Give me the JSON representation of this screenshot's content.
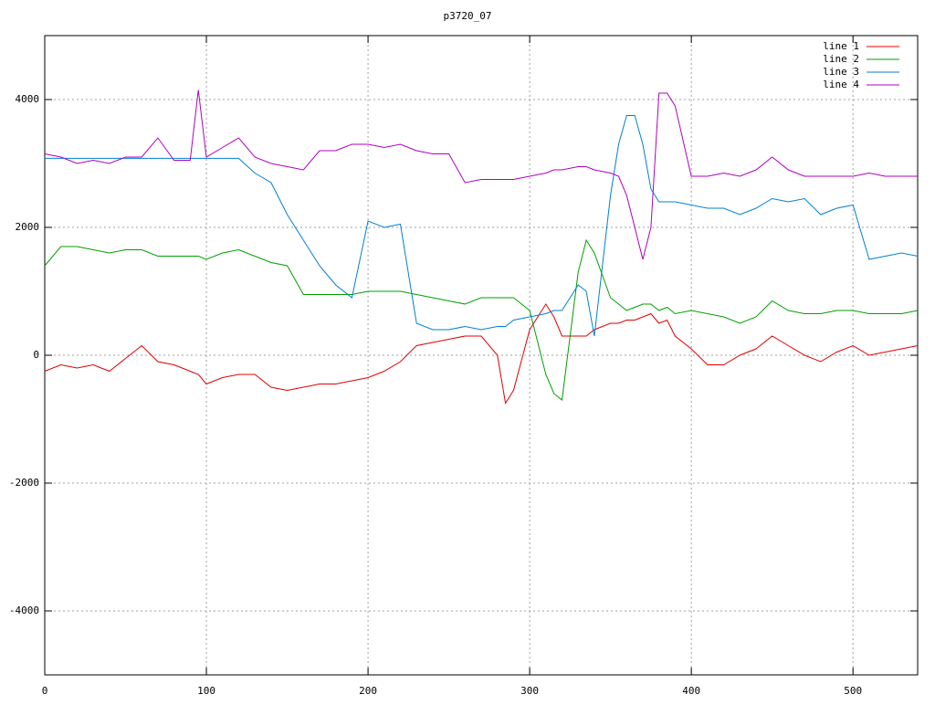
{
  "chart_data": {
    "type": "line",
    "title": "p3720_07",
    "x": [
      0,
      10,
      20,
      30,
      40,
      50,
      60,
      70,
      80,
      90,
      95,
      100,
      110,
      120,
      130,
      140,
      150,
      160,
      170,
      180,
      190,
      200,
      210,
      220,
      230,
      240,
      250,
      260,
      270,
      280,
      285,
      290,
      300,
      310,
      315,
      320,
      330,
      335,
      340,
      350,
      355,
      360,
      365,
      370,
      375,
      380,
      385,
      390,
      400,
      410,
      420,
      430,
      440,
      450,
      460,
      470,
      480,
      490,
      500,
      510,
      520,
      530,
      540
    ],
    "series": [
      {
        "name": "line 1",
        "color": "#e00000",
        "values": [
          -250,
          -150,
          -200,
          -150,
          -250,
          -50,
          150,
          -100,
          -150,
          -250,
          -300,
          -450,
          -350,
          -300,
          -300,
          -500,
          -550,
          -500,
          -450,
          -450,
          -400,
          -350,
          -250,
          -100,
          150,
          200,
          250,
          300,
          300,
          0,
          -750,
          -550,
          400,
          800,
          600,
          300,
          300,
          300,
          400,
          500,
          500,
          550,
          550,
          600,
          650,
          500,
          550,
          300,
          100,
          -150,
          -150,
          0,
          100,
          300,
          150,
          0,
          -100,
          50,
          150,
          0,
          50,
          100,
          150
        ]
      },
      {
        "name": "line 2",
        "color": "#00a000",
        "values": [
          1400,
          1700,
          1700,
          1650,
          1600,
          1650,
          1650,
          1550,
          1550,
          1550,
          1550,
          1500,
          1600,
          1650,
          1550,
          1450,
          1400,
          950,
          950,
          950,
          950,
          1000,
          1000,
          1000,
          950,
          900,
          850,
          800,
          900,
          900,
          900,
          900,
          700,
          -300,
          -600,
          -700,
          1300,
          1800,
          1600,
          900,
          800,
          700,
          750,
          800,
          800,
          700,
          750,
          650,
          700,
          650,
          600,
          500,
          600,
          850,
          700,
          650,
          650,
          700,
          700,
          650,
          650,
          650,
          700
        ]
      },
      {
        "name": "line 3",
        "color": "#0080d0",
        "values": [
          3080,
          3080,
          3080,
          3080,
          3080,
          3080,
          3080,
          3080,
          3080,
          3080,
          3080,
          3080,
          3080,
          3080,
          2850,
          2700,
          2200,
          1800,
          1400,
          1100,
          900,
          2100,
          2000,
          2050,
          500,
          400,
          400,
          450,
          400,
          450,
          450,
          550,
          600,
          650,
          700,
          700,
          1100,
          1000,
          300,
          2500,
          3300,
          3750,
          3750,
          3300,
          2600,
          2400,
          2400,
          2400,
          2350,
          2300,
          2300,
          2200,
          2300,
          2450,
          2400,
          2450,
          2200,
          2300,
          2350,
          1500,
          1550,
          1600,
          1550
        ]
      },
      {
        "name": "line 4",
        "color": "#b000c0",
        "values": [
          3150,
          3100,
          3000,
          3050,
          3000,
          3100,
          3100,
          3400,
          3050,
          3050,
          4150,
          3100,
          3250,
          3400,
          3100,
          3000,
          2950,
          2900,
          3200,
          3200,
          3300,
          3300,
          3250,
          3300,
          3200,
          3150,
          3150,
          2700,
          2750,
          2750,
          2750,
          2750,
          2800,
          2850,
          2900,
          2900,
          2950,
          2950,
          2900,
          2850,
          2800,
          2500,
          2000,
          1500,
          2000,
          4100,
          4100,
          3900,
          2800,
          2800,
          2850,
          2800,
          2900,
          3100,
          2900,
          2800,
          2800,
          2800,
          2800,
          2850,
          2800,
          2800,
          2800
        ]
      }
    ],
    "xlim": [
      0,
      540
    ],
    "xticks": [
      0,
      100,
      200,
      300,
      400,
      500
    ],
    "ylim": [
      -5000,
      5000
    ],
    "yticks": [
      -4000,
      -2000,
      0,
      2000,
      4000
    ],
    "grid": true,
    "legend": "top-right"
  }
}
